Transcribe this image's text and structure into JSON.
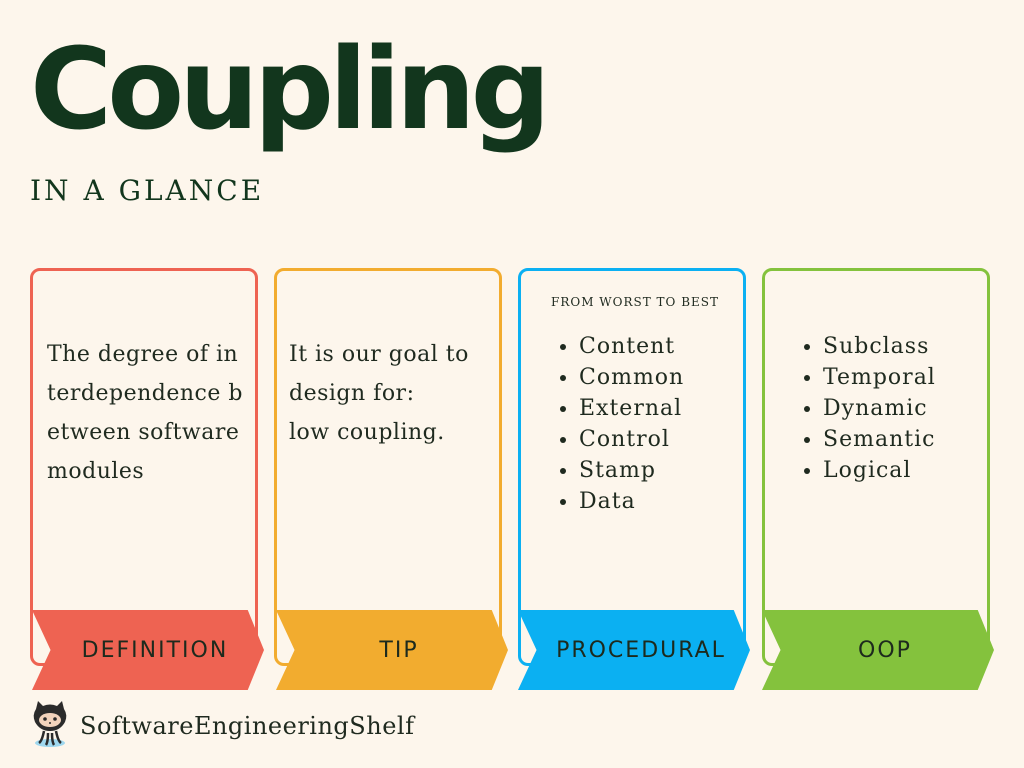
{
  "header": {
    "title": "Coupling",
    "subtitle": "IN A GLANCE"
  },
  "cards": {
    "definition": {
      "banner": "DEFINITION",
      "text": "The degree of interdependence between software modules",
      "color": "#ee6352"
    },
    "tip": {
      "banner": "TIP",
      "text_line1": "It is our goal to design for:",
      "text_line2": "low coupling.",
      "color": "#f2ac2f"
    },
    "procedural": {
      "banner": "PROCEDURAL",
      "note": "FROM WORST TO BEST",
      "items": [
        "Content",
        "Common",
        "External",
        "Control",
        "Stamp",
        "Data"
      ],
      "color": "#0bb0f2"
    },
    "oop": {
      "banner": "OOP",
      "items": [
        "Subclass",
        "Temporal",
        "Dynamic",
        "Semantic",
        "Logical"
      ],
      "color": "#84c23d"
    }
  },
  "footer": {
    "brand": "SoftwareEngineeringShelf",
    "logo_icon": "octocat-icon"
  }
}
